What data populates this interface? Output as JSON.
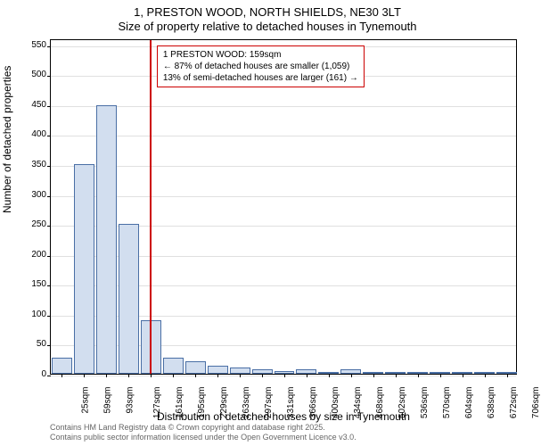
{
  "title_line1": "1, PRESTON WOOD, NORTH SHIELDS, NE30 3LT",
  "title_line2": "Size of property relative to detached houses in Tynemouth",
  "y_axis_label": "Number of detached properties",
  "x_axis_label": "Distribution of detached houses by size in Tynemouth",
  "footer_line1": "Contains HM Land Registry data © Crown copyright and database right 2025.",
  "footer_line2": "Contains public sector information licensed under the Open Government Licence v3.0.",
  "chart": {
    "type": "histogram",
    "ylim": [
      0,
      560
    ],
    "yticks": [
      0,
      50,
      100,
      150,
      200,
      250,
      300,
      350,
      400,
      450,
      500,
      550
    ],
    "x_categories": [
      "25sqm",
      "59sqm",
      "93sqm",
      "127sqm",
      "161sqm",
      "195sqm",
      "229sqm",
      "263sqm",
      "297sqm",
      "331sqm",
      "366sqm",
      "400sqm",
      "434sqm",
      "468sqm",
      "502sqm",
      "536sqm",
      "570sqm",
      "604sqm",
      "638sqm",
      "672sqm",
      "706sqm"
    ],
    "values": [
      27,
      350,
      448,
      250,
      90,
      27,
      21,
      14,
      10,
      8,
      5,
      7,
      3,
      8,
      2,
      2,
      3,
      2,
      0,
      2,
      2
    ],
    "bar_color": "#d2deef",
    "bar_border_color": "#4a6fa5",
    "background_color": "#ffffff",
    "grid_color": "#e0e0e0",
    "bar_width_ratio": 0.92
  },
  "marker": {
    "x_value": 159,
    "line_color": "#cc0000"
  },
  "annotation": {
    "line1": "1 PRESTON WOOD: 159sqm",
    "line2": "← 87% of detached houses are smaller (1,059)",
    "line3": "13% of semi-detached houses are larger (161) →",
    "border_color": "#cc0000",
    "bg_color": "#ffffff"
  }
}
